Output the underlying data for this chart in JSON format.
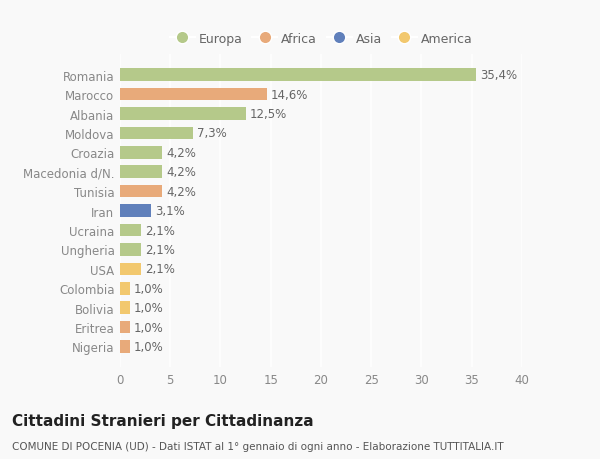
{
  "countries": [
    "Nigeria",
    "Eritrea",
    "Bolivia",
    "Colombia",
    "USA",
    "Ungheria",
    "Ucraina",
    "Iran",
    "Tunisia",
    "Macedonia d/N.",
    "Croazia",
    "Moldova",
    "Albania",
    "Marocco",
    "Romania"
  ],
  "values": [
    1.0,
    1.0,
    1.0,
    1.0,
    2.1,
    2.1,
    2.1,
    3.1,
    4.2,
    4.2,
    4.2,
    7.3,
    12.5,
    14.6,
    35.4
  ],
  "labels": [
    "1,0%",
    "1,0%",
    "1,0%",
    "1,0%",
    "2,1%",
    "2,1%",
    "2,1%",
    "3,1%",
    "4,2%",
    "4,2%",
    "4,2%",
    "7,3%",
    "12,5%",
    "14,6%",
    "35,4%"
  ],
  "continents": [
    "Africa",
    "Africa",
    "America",
    "America",
    "America",
    "Europa",
    "Europa",
    "Asia",
    "Africa",
    "Europa",
    "Europa",
    "Europa",
    "Europa",
    "Africa",
    "Europa"
  ],
  "colors": {
    "Europa": "#b5c98a",
    "Africa": "#e8aa7a",
    "Asia": "#6080bb",
    "America": "#f2c86e"
  },
  "xlim": [
    0,
    40
  ],
  "xticks": [
    0,
    5,
    10,
    15,
    20,
    25,
    30,
    35,
    40
  ],
  "title": "Cittadini Stranieri per Cittadinanza",
  "subtitle": "COMUNE DI POCENIA (UD) - Dati ISTAT al 1° gennaio di ogni anno - Elaborazione TUTTITALIA.IT",
  "background_color": "#f9f9f9",
  "bar_height": 0.65,
  "grid_color": "#ffffff",
  "label_color": "#666666",
  "ytick_color": "#888888",
  "xtick_color": "#888888",
  "label_fontsize": 8.5,
  "ytick_fontsize": 8.5,
  "xtick_fontsize": 8.5,
  "title_fontsize": 11,
  "subtitle_fontsize": 7.5,
  "legend_fontsize": 9,
  "legend_order": [
    "Europa",
    "Africa",
    "Asia",
    "America"
  ]
}
